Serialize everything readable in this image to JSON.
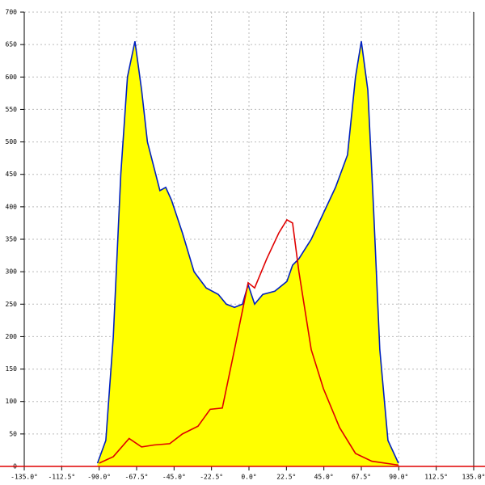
{
  "chart_data": {
    "type": "area-line",
    "xlim": [
      -135,
      135
    ],
    "xticks": [
      {
        "value": -135,
        "label": "-135.0°"
      },
      {
        "value": -112.5,
        "label": "-112.5°"
      },
      {
        "value": -90,
        "label": "-90.0°"
      },
      {
        "value": -67.5,
        "label": "-67.5°"
      },
      {
        "value": -45,
        "label": "-45.0°"
      },
      {
        "value": -22.5,
        "label": "-22.5°"
      },
      {
        "value": 0,
        "label": "0.0°"
      },
      {
        "value": 22.5,
        "label": "22.5°"
      },
      {
        "value": 45,
        "label": "45.0°"
      },
      {
        "value": 67.5,
        "label": "67.5°"
      },
      {
        "value": 90,
        "label": "90.0°"
      },
      {
        "value": 112.5,
        "label": "112.5°"
      },
      {
        "value": 135,
        "label": "135.0°"
      }
    ],
    "ylim": [
      0,
      700
    ],
    "yticks": [
      0,
      50,
      100,
      150,
      200,
      250,
      300,
      350,
      400,
      450,
      500,
      550,
      600,
      650,
      700
    ],
    "grid": true,
    "series": [
      {
        "color": "#0020c0",
        "fill": "#ffff00",
        "x": [
          -91,
          -86,
          -81.5,
          -77,
          -73,
          -68.5,
          -64.5,
          -61,
          -57,
          -53.5,
          -50,
          -46.5,
          -40,
          -33,
          -25.7,
          -18.4,
          -13.6,
          -8.7,
          -3.9,
          -0.5,
          3.4,
          8.3,
          15.5,
          22.8,
          26.2,
          30,
          37.4,
          44.7,
          52,
          59.2,
          64,
          67.5,
          71.4,
          74.8,
          78.6,
          83.5,
          89.8
        ],
        "values": [
          5,
          40,
          200,
          450,
          600,
          655,
          580,
          500,
          460,
          425,
          430,
          410,
          360,
          300,
          275,
          265,
          250,
          245,
          250,
          280,
          250,
          265,
          270,
          285,
          310,
          320,
          350,
          390,
          430,
          480,
          600,
          655,
          580,
          400,
          180,
          40,
          5
        ]
      },
      {
        "color": "#e00000",
        "x": [
          -90,
          -81.5,
          -72,
          -64.5,
          -57,
          -47.6,
          -40,
          -30.6,
          -23.3,
          -16,
          -8.7,
          -0.5,
          3.4,
          10.7,
          18,
          22.8,
          26.2,
          30,
          37.4,
          44.7,
          54.4,
          64,
          73.8,
          89.8
        ],
        "values": [
          5,
          15,
          43,
          30,
          33,
          35,
          50,
          62,
          88,
          90,
          180,
          283,
          275,
          320,
          360,
          380,
          375,
          300,
          180,
          120,
          60,
          20,
          8,
          2
        ]
      }
    ]
  }
}
